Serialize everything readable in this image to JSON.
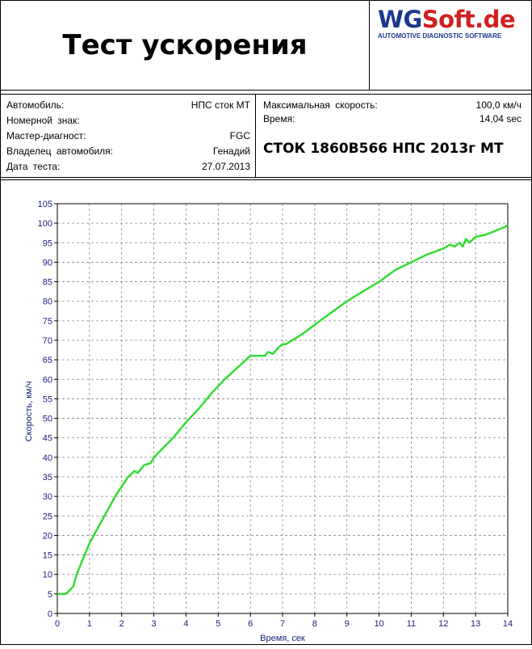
{
  "header": {
    "title": "Тест ускорения",
    "logo": {
      "part1": "WG",
      "part2": "Soft.de",
      "subtitle": "AUTOMOTIVE DIAGNOSTIC SOFTWARE"
    }
  },
  "info": {
    "left": [
      {
        "label": "Автомобиль:",
        "value": "НПС сток МТ"
      },
      {
        "label": "Номерной знак:",
        "value": ""
      },
      {
        "label": "Мастер-диагност:",
        "value": "FGC"
      },
      {
        "label": "Владелец автомобиля:",
        "value": "Генадий"
      },
      {
        "label": "Дата теста:",
        "value": "27.07.2013"
      }
    ],
    "right": [
      {
        "label": "Максимальная скорость:",
        "value": "100,0 км/ч"
      },
      {
        "label": "Время:",
        "value": "14,04 sec"
      }
    ],
    "test_name": "СТОК 1860В566 НПС 2013г МТ"
  },
  "colors": {
    "curve": "#33dd33",
    "axis_labels": "#1a237e",
    "grid": "#888888"
  },
  "chart_data": {
    "type": "line",
    "xlabel": "Время, сек",
    "ylabel": "Скорость, км/ч",
    "xlim": [
      0,
      14
    ],
    "ylim": [
      0,
      105
    ],
    "xticks": [
      0,
      1,
      2,
      3,
      4,
      5,
      6,
      7,
      8,
      9,
      10,
      11,
      12,
      13,
      14
    ],
    "yticks": [
      0,
      5,
      10,
      15,
      20,
      25,
      30,
      35,
      40,
      45,
      50,
      55,
      60,
      65,
      70,
      75,
      80,
      85,
      90,
      95,
      100,
      105
    ],
    "grid": true,
    "series": [
      {
        "x": [
          0,
          0.25,
          0.4,
          0.5,
          0.6,
          0.7,
          0.8,
          0.9,
          1.0,
          1.2,
          1.4,
          1.6,
          1.8,
          2.0,
          2.2,
          2.4,
          2.5,
          2.7,
          2.9,
          3.0,
          3.3,
          3.6,
          4.0,
          4.4,
          4.8,
          5.2,
          5.6,
          6.0,
          6.3,
          6.45,
          6.55,
          6.7,
          6.85,
          7.0,
          7.1,
          7.3,
          7.6,
          8.0,
          8.5,
          9.0,
          9.5,
          10.0,
          10.5,
          11.0,
          11.5,
          12.0,
          12.2,
          12.35,
          12.5,
          12.6,
          12.7,
          12.8,
          13.0,
          13.3,
          13.6,
          13.9,
          14.0
        ],
        "y": [
          5,
          5,
          6,
          7,
          10,
          12,
          14,
          16,
          18,
          21,
          24,
          27,
          30,
          32.5,
          35,
          36.5,
          36,
          38,
          38.5,
          40,
          42.5,
          45,
          49,
          52.5,
          56.5,
          60,
          63,
          66,
          66,
          66,
          67,
          66.5,
          68,
          69,
          69,
          70,
          71.5,
          74,
          77,
          80,
          82.5,
          85,
          88,
          90,
          92,
          93.5,
          94.5,
          94,
          95,
          94,
          96,
          95,
          96.5,
          97,
          98,
          99,
          99.5
        ]
      }
    ]
  }
}
